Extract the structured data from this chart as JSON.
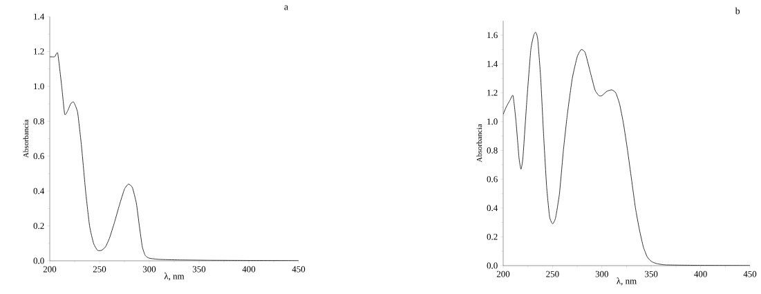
{
  "chart_data": [
    {
      "type": "line",
      "title": "a",
      "xlabel": "λ, nm",
      "ylabel": "Absorbancia",
      "color": "#333333",
      "x": [
        200,
        205,
        208,
        212,
        215,
        218,
        221,
        224,
        228,
        232,
        236,
        240,
        244,
        248,
        252,
        256,
        260,
        265,
        270,
        275,
        279,
        283,
        287,
        290,
        293,
        296,
        300,
        310,
        330,
        360,
        400,
        450
      ],
      "values": [
        1.17,
        1.17,
        1.19,
        1.0,
        0.84,
        0.86,
        0.9,
        0.91,
        0.85,
        0.65,
        0.4,
        0.2,
        0.1,
        0.06,
        0.06,
        0.08,
        0.13,
        0.22,
        0.32,
        0.41,
        0.44,
        0.42,
        0.33,
        0.2,
        0.08,
        0.03,
        0.015,
        0.008,
        0.005,
        0.003,
        0.002,
        0.001
      ],
      "xlim": [
        200,
        450
      ],
      "ylim": [
        0,
        1.4
      ],
      "xticks": [
        200,
        250,
        300,
        350,
        400,
        450
      ],
      "yticks": [
        {
          "value": 0,
          "label": "0.0"
        },
        {
          "value": 0.2,
          "label": "0.2"
        },
        {
          "value": 0.4,
          "label": "0.4"
        },
        {
          "value": 0.6,
          "label": "0.6"
        },
        {
          "value": 0.8,
          "label": "0.8"
        },
        {
          "value": 1.0,
          "label": "1.0"
        },
        {
          "value": 1.2,
          "label": "1.2"
        },
        {
          "value": 1.4,
          "label": "1.4"
        }
      ]
    },
    {
      "type": "line",
      "title": "b",
      "xlabel": "λ, nm",
      "ylabel": "Absorbancia",
      "color": "#333333",
      "x": [
        200,
        203,
        207,
        210,
        213,
        216,
        218,
        220,
        224,
        228,
        231,
        233,
        235,
        238,
        241,
        244,
        247,
        250,
        253,
        257,
        261,
        265,
        270,
        275,
        279,
        283,
        288,
        293,
        297,
        300,
        305,
        310,
        314,
        318,
        322,
        326,
        330,
        334,
        338,
        342,
        346,
        350,
        355,
        365,
        400,
        450
      ],
      "values": [
        1.05,
        1.1,
        1.15,
        1.18,
        1.0,
        0.75,
        0.67,
        0.75,
        1.15,
        1.5,
        1.6,
        1.62,
        1.57,
        1.3,
        0.9,
        0.55,
        0.34,
        0.29,
        0.33,
        0.5,
        0.8,
        1.05,
        1.3,
        1.45,
        1.5,
        1.48,
        1.35,
        1.22,
        1.18,
        1.18,
        1.21,
        1.22,
        1.2,
        1.12,
        0.98,
        0.8,
        0.6,
        0.4,
        0.25,
        0.13,
        0.06,
        0.03,
        0.015,
        0.005,
        0.002,
        0.001
      ],
      "xlim": [
        200,
        450
      ],
      "ylim": [
        0,
        1.7
      ],
      "xticks": [
        200,
        250,
        300,
        350,
        400,
        450
      ],
      "yticks": [
        {
          "value": 0,
          "label": "0.0"
        },
        {
          "value": 0.2,
          "label": "0.2"
        },
        {
          "value": 0.4,
          "label": "0.4"
        },
        {
          "value": 0.6,
          "label": "0.6"
        },
        {
          "value": 0.8,
          "label": "0.8"
        },
        {
          "value": 1.0,
          "label": "1.0"
        },
        {
          "value": 1.2,
          "label": "1.2"
        },
        {
          "value": 1.4,
          "label": "1.4"
        },
        {
          "value": 1.6,
          "label": "1.6"
        }
      ]
    }
  ]
}
